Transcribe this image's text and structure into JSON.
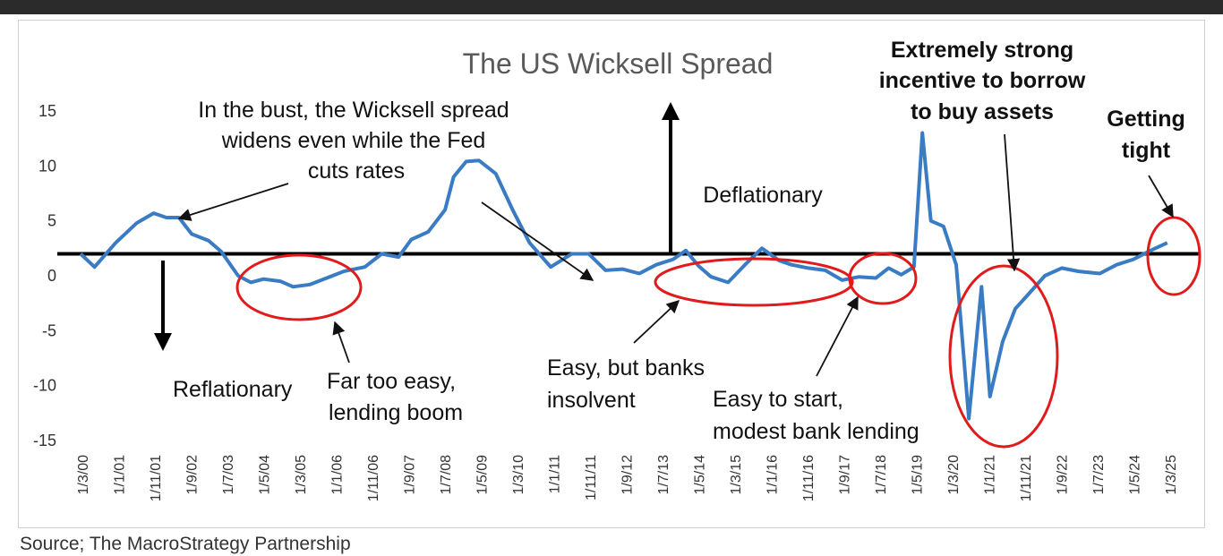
{
  "source": "Source; The MacroStrategy Partnership",
  "colors": {
    "line": "#3a7cc4",
    "threshold": "#000000",
    "highlight": "#e11b1b"
  },
  "chart_data": {
    "type": "line",
    "title": "The US Wicksell Spread",
    "xlabel": "",
    "ylabel": "",
    "ylim": [
      -15,
      15
    ],
    "yticks": [
      15,
      10,
      5,
      0,
      -5,
      -10,
      -15
    ],
    "xticks": [
      "1/3/00",
      "1/1/01",
      "1/11/01",
      "1/9/02",
      "1/7/03",
      "1/5/04",
      "1/3/05",
      "1/1/06",
      "1/11/06",
      "1/9/07",
      "1/7/08",
      "1/5/09",
      "1/3/10",
      "1/1/11",
      "1/11/11",
      "1/9/12",
      "1/7/13",
      "1/5/14",
      "1/3/15",
      "1/1/16",
      "1/11/16",
      "1/9/17",
      "1/7/18",
      "1/5/19",
      "1/3/20",
      "1/1/21",
      "1/11/21",
      "1/9/22",
      "1/7/23",
      "1/5/24",
      "1/3/25"
    ],
    "grid": false,
    "threshold_y": 2,
    "series": [
      {
        "x": [
          2000.17,
          2000.5,
          2001.0,
          2001.5,
          2001.9,
          2002.2,
          2002.5,
          2002.8,
          2003.2,
          2003.5,
          2003.9,
          2004.2,
          2004.5,
          2004.9,
          2005.2,
          2005.6,
          2006.0,
          2006.4,
          2006.9,
          2007.3,
          2007.7,
          2008.0,
          2008.4,
          2008.8,
          2009.0,
          2009.3,
          2009.6,
          2010.0,
          2010.4,
          2010.8,
          2011.3,
          2011.8,
          2012.2,
          2012.6,
          2013.0,
          2013.4,
          2013.8,
          2014.2,
          2014.5,
          2014.8,
          2015.1,
          2015.5,
          2015.9,
          2016.3,
          2016.7,
          2017.0,
          2017.4,
          2017.8,
          2018.2,
          2018.6,
          2019.0,
          2019.3,
          2019.6,
          2019.9,
          2020.1,
          2020.3,
          2020.6,
          2020.9,
          2021.2,
          2021.5,
          2021.7,
          2022.0,
          2022.3,
          2022.7,
          2023.0,
          2023.4,
          2023.8,
          2024.3,
          2024.7,
          2025.1,
          2025.5,
          2025.9
        ],
        "y": [
          2.0,
          0.8,
          3.0,
          4.8,
          5.7,
          5.3,
          5.3,
          3.8,
          3.2,
          2.2,
          0.0,
          -0.6,
          -0.3,
          -0.5,
          -1.0,
          -0.8,
          -0.2,
          0.4,
          0.8,
          2.0,
          1.7,
          3.3,
          4.0,
          6.0,
          9.0,
          10.4,
          10.5,
          9.3,
          6.0,
          3.0,
          0.8,
          2.0,
          2.0,
          0.5,
          0.6,
          0.2,
          1.0,
          1.5,
          2.3,
          0.9,
          -0.1,
          -0.6,
          1.0,
          2.5,
          1.4,
          1.0,
          0.7,
          0.5,
          -0.4,
          -0.1,
          -0.2,
          0.7,
          0.1,
          0.8,
          13.0,
          5.0,
          4.5,
          1.0,
          -13.0,
          -1.0,
          -11.0,
          -6.0,
          -3.0,
          -1.3,
          0.0,
          0.7,
          0.4,
          0.2,
          1.0,
          1.5,
          2.3,
          3.0
        ]
      }
    ],
    "annotations": {
      "reflationary": "Reflationary",
      "bust": [
        "In the bust, the Wicksell spread",
        "widens even while the Fed",
        "cuts rates"
      ],
      "far_too_easy": [
        "Far too easy,",
        "lending boom"
      ],
      "deflationary": "Deflationary",
      "easy_insolvent": [
        "Easy, but banks",
        "insolvent"
      ],
      "easy_to_start": [
        "Easy to start,",
        "modest bank lending"
      ],
      "extremely_strong": [
        "Extremely strong",
        "incentive to borrow",
        "to buy assets"
      ],
      "getting_tight": [
        "Getting",
        "tight"
      ]
    }
  }
}
